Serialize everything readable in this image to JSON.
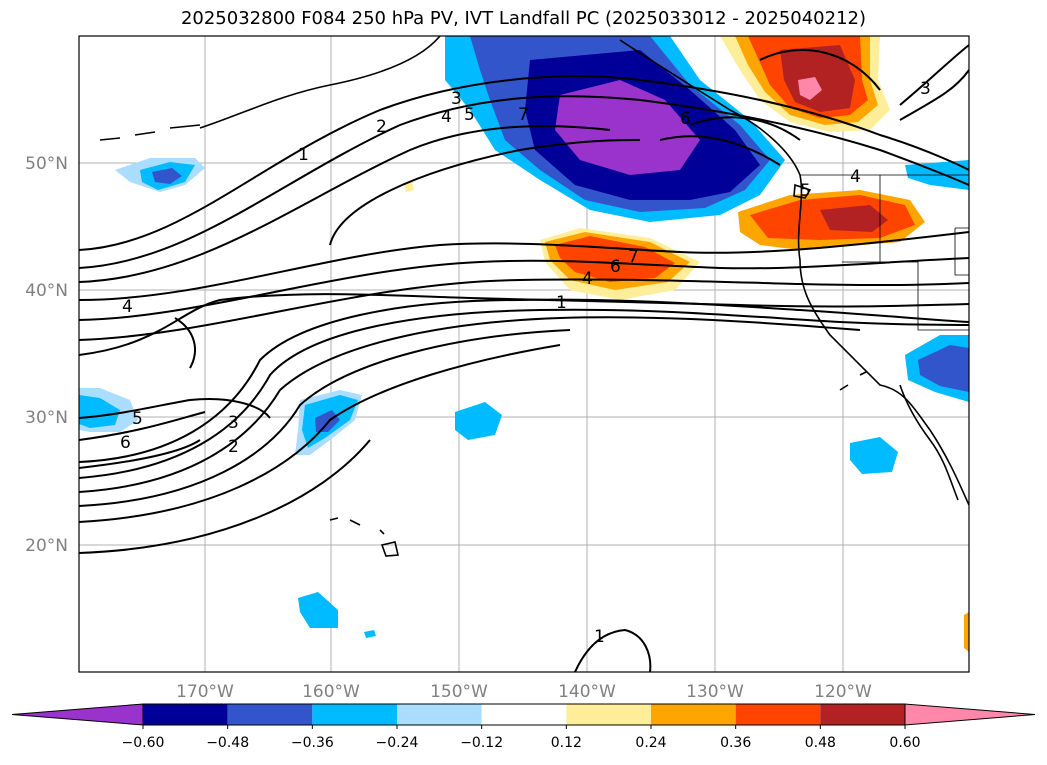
{
  "title": "2025032800 F084 250 hPa PV, IVT Landfall PC (2025033012 - 2025040212)",
  "lat_labels": [
    "50°N",
    "40°N",
    "30°N",
    "20°N"
  ],
  "lon_labels": [
    "170°W",
    "160°W",
    "150°W",
    "140°W",
    "130°W",
    "120°W"
  ],
  "colorbar": {
    "ticks": [
      "−0.60",
      "−0.48",
      "−0.36",
      "−0.24",
      "−0.12",
      "0.12",
      "0.24",
      "0.36",
      "0.48",
      "0.60"
    ],
    "colors": [
      "#9933cc",
      "#000099",
      "#3355cc",
      "#00bbff",
      "#aaddff",
      "#ffffff",
      "#ffee99",
      "#ffa500",
      "#ff4400",
      "#b22222",
      "#ff88aa"
    ]
  },
  "contour_labels": {
    "c1": "1",
    "c2": "2",
    "c3": "3",
    "c4": "4",
    "c5": "5",
    "c6": "6",
    "c7": "7"
  }
}
